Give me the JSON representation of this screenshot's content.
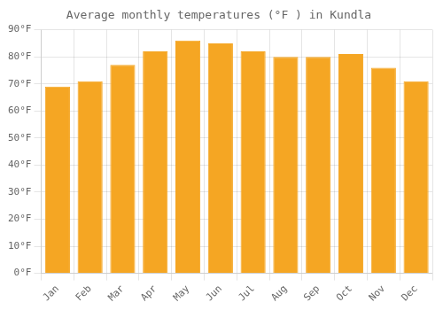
{
  "chart_data": {
    "type": "bar",
    "title": "Average monthly temperatures (°F ) in Kundla",
    "categories": [
      "Jan",
      "Feb",
      "Mar",
      "Apr",
      "May",
      "Jun",
      "Jul",
      "Aug",
      "Sep",
      "Oct",
      "Nov",
      "Dec"
    ],
    "values": [
      69,
      71,
      77,
      82,
      86,
      85,
      82,
      80,
      80,
      81,
      76,
      71
    ],
    "color": "#F5A623",
    "ylim": [
      0,
      90
    ],
    "yticks": [
      {
        "value": 0,
        "label": "0°F"
      },
      {
        "value": 10,
        "label": "10°F"
      },
      {
        "value": 20,
        "label": "20°F"
      },
      {
        "value": 30,
        "label": "30°F"
      },
      {
        "value": 40,
        "label": "40°F"
      },
      {
        "value": 50,
        "label": "50°F"
      },
      {
        "value": 60,
        "label": "60°F"
      },
      {
        "value": 70,
        "label": "70°F"
      },
      {
        "value": 80,
        "label": "80°F"
      },
      {
        "value": 90,
        "label": "90°F"
      }
    ],
    "grid": true
  }
}
